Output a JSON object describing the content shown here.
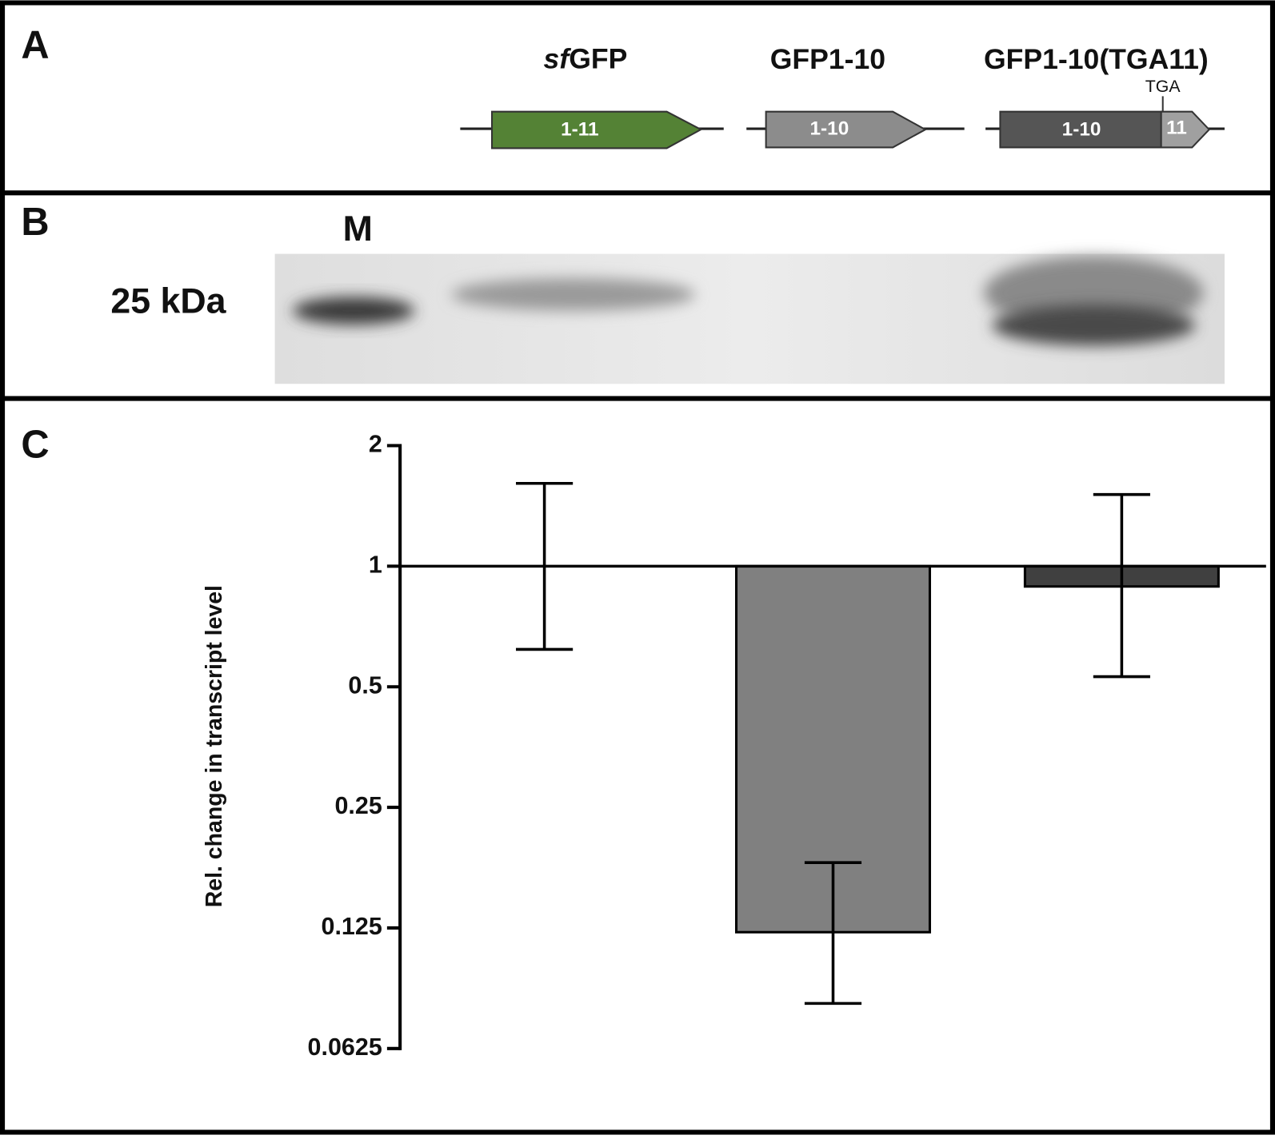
{
  "panels": {
    "A": {
      "label": "A",
      "constructs": [
        {
          "name_italic": "sf",
          "name": "GFP",
          "segments": [
            "1-11"
          ]
        },
        {
          "name": "GFP1-10",
          "segments": [
            "1-10"
          ]
        },
        {
          "name": "GFP1-10(TGA11)",
          "segments": [
            "1-10",
            "11"
          ],
          "stop_codon": "TGA"
        }
      ]
    },
    "B": {
      "label": "B",
      "lane_label": "M",
      "marker": "25 kDa"
    },
    "C": {
      "label": "C"
    }
  },
  "chart_data": {
    "type": "bar",
    "y_label": "Rel. change in transcript level",
    "categories": [
      null,
      null,
      null
    ],
    "colors": [
      "#ffffff",
      "#808080",
      "#404040"
    ],
    "series": [
      {
        "values": [
          1,
          0.122,
          0.89
        ],
        "error_low": [
          0.62,
          0.081,
          0.53
        ],
        "error_high": [
          1.61,
          0.182,
          1.51
        ]
      }
    ],
    "ylim": [
      0.0625,
      2
    ],
    "yticks": [
      0.0625,
      0.125,
      0.25,
      0.5,
      1,
      2
    ],
    "log_scale": true,
    "log_base": 2,
    "baseline": 1
  }
}
